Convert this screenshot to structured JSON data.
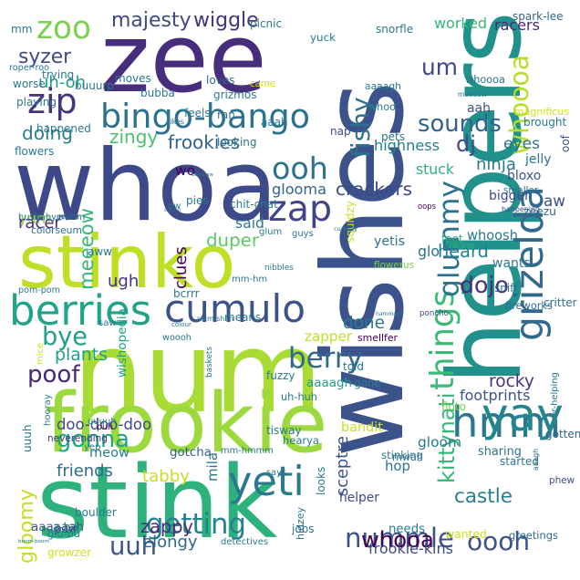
{
  "words": [
    {
      "text": "wishes",
      "color": "#3b528b"
    },
    {
      "text": "zee",
      "color": "#472d7b"
    },
    {
      "text": "whoa",
      "color": "#3e4989"
    },
    {
      "text": "num",
      "color": "#a8db34"
    },
    {
      "text": "stink",
      "color": "#2db27d"
    },
    {
      "text": "helpers",
      "color": "#21918c"
    },
    {
      "text": "stinko",
      "color": "#bddf26"
    },
    {
      "text": "frookie",
      "color": "#9bd93c"
    },
    {
      "text": "hmm",
      "color": "#2a788e"
    },
    {
      "text": "yay",
      "color": "#25858e"
    },
    {
      "text": "bingo-bango",
      "color": "#2c718e"
    },
    {
      "text": "berries",
      "color": "#20a386"
    },
    {
      "text": "cumulo",
      "color": "#3b528b"
    },
    {
      "text": "berry",
      "color": "#31688e"
    },
    {
      "text": "zoo",
      "color": "#7ad151"
    },
    {
      "text": "zip",
      "color": "#46337e"
    },
    {
      "text": "zap",
      "color": "#414487"
    },
    {
      "text": "ooh",
      "color": "#2c728e"
    },
    {
      "text": "um",
      "color": "#3f4788"
    },
    {
      "text": "syzer",
      "color": "#3e4989"
    },
    {
      "text": "sounds",
      "color": "#33638d"
    },
    {
      "text": "whoooa",
      "color": "#b5de2b"
    },
    {
      "text": "grizelda",
      "color": "#31688e"
    },
    {
      "text": "things",
      "color": "#3aba76"
    },
    {
      "text": "glummy",
      "color": "#2c728e"
    },
    {
      "text": "yeti",
      "color": "#2a788e"
    },
    {
      "text": "nummle",
      "color": "#3b528b"
    },
    {
      "text": "getting",
      "color": "#26828e"
    },
    {
      "text": "whooa",
      "color": "#440154"
    },
    {
      "text": "uuh",
      "color": "#3b528b"
    },
    {
      "text": "gonna",
      "color": "#20a486"
    },
    {
      "text": "poof",
      "color": "#482878"
    },
    {
      "text": "bye",
      "color": "#1fa088"
    },
    {
      "text": "heard",
      "color": "#287d8e"
    },
    {
      "text": "fishy",
      "color": "#2c728e"
    },
    {
      "text": "majesty",
      "color": "#3e4989"
    },
    {
      "text": "wiggle",
      "color": "#46337e"
    },
    {
      "text": "gloomy",
      "color": "#c2df23"
    },
    {
      "text": "kittynati",
      "color": "#35b779"
    },
    {
      "text": "castle",
      "color": "#287d8e"
    },
    {
      "text": "oooh",
      "color": "#3b528b"
    },
    {
      "text": "dojo",
      "color": "#472d7b"
    },
    {
      "text": "frookies",
      "color": "#33638d"
    },
    {
      "text": "crackers",
      "color": "#3e4989"
    },
    {
      "text": "doing",
      "color": "#287d8e"
    },
    {
      "text": "zingy",
      "color": "#4ac16d"
    },
    {
      "text": "meeeow",
      "color": "#35b779"
    },
    {
      "text": "said",
      "color": "#2a788e"
    },
    {
      "text": "duper",
      "color": "#5ec962"
    },
    {
      "text": "yum",
      "color": "#a5db36"
    },
    {
      "text": "glooma",
      "color": "#33638d"
    },
    {
      "text": "plants",
      "color": "#1f9e89"
    },
    {
      "text": "doo-doo-doo",
      "color": "#3e4989"
    },
    {
      "text": "elongy",
      "color": "#31688e"
    },
    {
      "text": "zappy",
      "color": "#482878"
    },
    {
      "text": "tabby",
      "color": "#c8e020"
    },
    {
      "text": "meow",
      "color": "#26828e"
    },
    {
      "text": "friends",
      "color": "#306a8e"
    },
    {
      "text": "mila",
      "color": "#2a788e"
    },
    {
      "text": "sceptre",
      "color": "#3b528b"
    },
    {
      "text": "bandit",
      "color": "#cae11f"
    },
    {
      "text": "gloom",
      "color": "#2a788e"
    },
    {
      "text": "rocky",
      "color": "#46327e"
    },
    {
      "text": "done",
      "color": "#2a788e"
    },
    {
      "text": "yetis",
      "color": "#2c728e"
    },
    {
      "text": "whoosh",
      "color": "#2a788e"
    },
    {
      "text": "glo",
      "color": "#2c728e"
    },
    {
      "text": "zapper",
      "color": "#bddf26"
    },
    {
      "text": "clues",
      "color": "#440154"
    },
    {
      "text": "ugh",
      "color": "#46327e"
    },
    {
      "text": "aaaagh",
      "color": "#1f9e89"
    },
    {
      "text": "wishopedia",
      "color": "#1f9e89"
    },
    {
      "text": "aw",
      "color": "#3b528b"
    },
    {
      "text": "dj",
      "color": "#3e4989"
    },
    {
      "text": "ninja",
      "color": "#2a788e"
    },
    {
      "text": "eyes",
      "color": "#2c728e"
    },
    {
      "text": "highness",
      "color": "#287d8e"
    },
    {
      "text": "stuck",
      "color": "#2db27d"
    },
    {
      "text": "aah",
      "color": "#3b528b"
    },
    {
      "text": "worked",
      "color": "#37b878"
    },
    {
      "text": "racers",
      "color": "#482878"
    },
    {
      "text": "uh-oh",
      "color": "#1f9e89"
    },
    {
      "text": "squidzy",
      "color": "#cae11f"
    },
    {
      "text": "wo",
      "color": "#440154"
    },
    {
      "text": "racer",
      "color": "#46327e"
    },
    {
      "text": "hop",
      "color": "#2c728e"
    },
    {
      "text": "sharing",
      "color": "#2c728e"
    },
    {
      "text": "footprints",
      "color": "#3b528b"
    },
    {
      "text": "mm-hmmm",
      "color": "#2a788e"
    },
    {
      "text": "gotcha",
      "color": "#33638d"
    },
    {
      "text": "looks",
      "color": "#2a788e"
    },
    {
      "text": "helper",
      "color": "#3e4989"
    },
    {
      "text": "frookie-kins",
      "color": "#3e4989"
    },
    {
      "text": "wanted",
      "color": "#cde11d"
    },
    {
      "text": "needs",
      "color": "#287d8e"
    },
    {
      "text": "aaaaaah",
      "color": "#3b528b"
    },
    {
      "text": "hidzey",
      "color": "#2a788e"
    },
    {
      "text": "greetings",
      "color": "#31688e"
    },
    {
      "text": "boulder",
      "color": "#2a788e"
    },
    {
      "text": "paw",
      "color": "#3e4989"
    },
    {
      "text": "jobs",
      "color": "#2c728e"
    },
    {
      "text": "mwah",
      "color": "#2c728e"
    },
    {
      "text": "tisway",
      "color": "#2a788e"
    },
    {
      "text": "hearya",
      "color": "#2a788e"
    },
    {
      "text": "told",
      "color": "#2a788e"
    },
    {
      "text": "puh",
      "color": "#440154"
    },
    {
      "text": "neverending",
      "color": "#46327e"
    },
    {
      "text": "fuzzy",
      "color": "#287d8e"
    },
    {
      "text": "gone",
      "color": "#287d8e"
    },
    {
      "text": "stinking",
      "color": "#2c728e"
    },
    {
      "text": "aaagh",
      "color": "#33638d"
    },
    {
      "text": "phew",
      "color": "#3b528b"
    },
    {
      "text": "started",
      "color": "#2a788e"
    },
    {
      "text": "over-helping",
      "color": "#2a788e"
    },
    {
      "text": "gotten",
      "color": "#33638d"
    },
    {
      "text": "fireworks",
      "color": "#31688e"
    },
    {
      "text": "critter",
      "color": "#2c728e"
    },
    {
      "text": "sniff",
      "color": "#2c728e"
    },
    {
      "text": "poncho",
      "color": "#3e4989"
    },
    {
      "text": "hammock",
      "color": "#2a788e"
    },
    {
      "text": "smellfer",
      "color": "#440154"
    },
    {
      "text": "flowerus",
      "color": "#7ad151"
    },
    {
      "text": "feet",
      "color": "#2db27d"
    },
    {
      "text": "racing",
      "color": "#2db27d"
    },
    {
      "text": "wants",
      "color": "#2a788e"
    },
    {
      "text": "zeezu",
      "color": "#31688e"
    },
    {
      "text": "happening",
      "color": "#3b528b"
    },
    {
      "text": "bigger",
      "color": "#3e4989"
    },
    {
      "text": "bloxo",
      "color": "#3b528b"
    },
    {
      "text": "smaller",
      "color": "#31688e"
    },
    {
      "text": "jelly",
      "color": "#2a788e"
    },
    {
      "text": "oof",
      "color": "#3b528b"
    },
    {
      "text": "oops",
      "color": "#440154"
    },
    {
      "text": "pets",
      "color": "#2c728e"
    },
    {
      "text": "cu-bigly",
      "color": "#287d8e"
    },
    {
      "text": "brought",
      "color": "#2a788e"
    },
    {
      "text": "magnificus",
      "color": "#cde11d"
    },
    {
      "text": "whoooa",
      "color": "#2c728e"
    },
    {
      "text": "aaaagh",
      "color": "#2a788e"
    },
    {
      "text": "whoo",
      "color": "#2a788e"
    },
    {
      "text": "meeeow",
      "color": "#2a788e"
    },
    {
      "text": "spark-lee",
      "color": "#33638d"
    },
    {
      "text": "snorfle",
      "color": "#2a788e"
    },
    {
      "text": "yuck",
      "color": "#2a788e"
    },
    {
      "text": "picnic",
      "color": "#2a788e"
    },
    {
      "text": "loves",
      "color": "#31688e"
    },
    {
      "text": "grizmos",
      "color": "#2a788e"
    },
    {
      "text": "came",
      "color": "#cde11d"
    },
    {
      "text": "bubba",
      "color": "#2a788e"
    },
    {
      "text": "aaah",
      "color": "#287d8e"
    },
    {
      "text": "ran",
      "color": "#2c728e"
    },
    {
      "text": "feels",
      "color": "#2a788e"
    },
    {
      "text": "likes",
      "color": "#2c728e"
    },
    {
      "text": "looking",
      "color": "#2a788e"
    },
    {
      "text": "nap",
      "color": "#3e4989"
    },
    {
      "text": "bee-paw",
      "color": "#2a788e"
    },
    {
      "text": "pies",
      "color": "#2a788e"
    },
    {
      "text": "ow",
      "color": "#2a788e"
    },
    {
      "text": "stopped",
      "color": "#31688e"
    },
    {
      "text": "chit-chat",
      "color": "#2a788e"
    },
    {
      "text": "mmm",
      "color": "#2a788e"
    },
    {
      "text": "geyser",
      "color": "#3e4989"
    },
    {
      "text": "hushabye",
      "color": "#2a788e"
    },
    {
      "text": "colorseum",
      "color": "#2c728e"
    },
    {
      "text": "glum",
      "color": "#2a788e"
    },
    {
      "text": "guys",
      "color": "#2a788e"
    },
    {
      "text": "aww",
      "color": "#2a788e"
    },
    {
      "text": "nibbles",
      "color": "#2a788e"
    },
    {
      "text": "pom-pom",
      "color": "#2a788e"
    },
    {
      "text": "bcrrr",
      "color": "#2a788e"
    },
    {
      "text": "mm-hm",
      "color": "#2a788e"
    },
    {
      "text": "saw",
      "color": "#2a788e"
    },
    {
      "text": "colour",
      "color": "#2a788e"
    },
    {
      "text": "shim-shim",
      "color": "#2a788e"
    },
    {
      "text": "means",
      "color": "#2a788e"
    },
    {
      "text": "woooh",
      "color": "#2a788e"
    },
    {
      "text": "mice",
      "color": "#cde11d"
    },
    {
      "text": "baskets",
      "color": "#2a788e"
    },
    {
      "text": "uuuuh",
      "color": "#2a788e"
    },
    {
      "text": "uuuh",
      "color": "#2a788e"
    },
    {
      "text": "hooray",
      "color": "#2a788e"
    },
    {
      "text": "yep",
      "color": "#2a788e"
    },
    {
      "text": "says",
      "color": "#2a788e"
    },
    {
      "text": "uh-huh",
      "color": "#2a788e"
    },
    {
      "text": "floto",
      "color": "#7ad151"
    },
    {
      "text": "glu-bu",
      "color": "#2a788e"
    },
    {
      "text": "a-ha",
      "color": "#2a788e"
    },
    {
      "text": "boom-boom",
      "color": "#2a788e"
    },
    {
      "text": "detectives",
      "color": "#2a788e"
    },
    {
      "text": "growzer",
      "color": "#cde11d"
    },
    {
      "text": "flowers",
      "color": "#2a788e"
    },
    {
      "text": "happened",
      "color": "#2a788e"
    },
    {
      "text": "playing",
      "color": "#2a788e"
    },
    {
      "text": "worse",
      "color": "#2a788e"
    },
    {
      "text": "roper-roo",
      "color": "#2a788e"
    },
    {
      "text": "trying",
      "color": "#2a788e"
    },
    {
      "text": "buuurp",
      "color": "#2a788e"
    },
    {
      "text": "moves",
      "color": "#2a788e"
    },
    {
      "text": "mm",
      "color": "#2a788e"
    }
  ]
}
